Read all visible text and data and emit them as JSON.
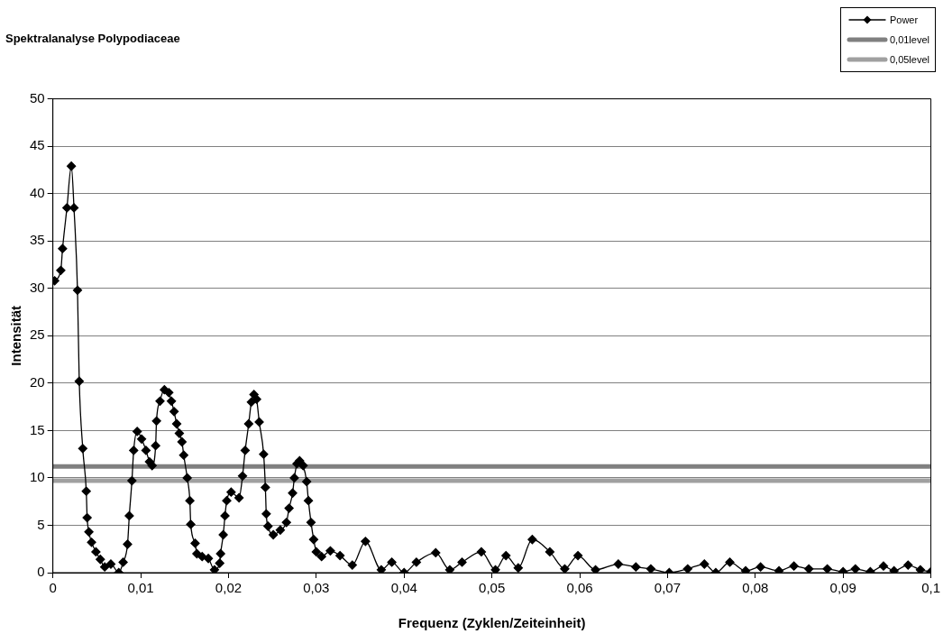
{
  "chart_data": {
    "type": "line",
    "title": "Spektralanalyse Polypodiaceae",
    "xlabel": "Frequenz (Zyklen/Zeiteinheit)",
    "ylabel": "Intensität",
    "xlim": [
      0,
      0.1
    ],
    "xticks": [
      {
        "value": 0,
        "label": "0"
      },
      {
        "value": 0.01,
        "label": "0,01"
      },
      {
        "value": 0.02,
        "label": "0,02"
      },
      {
        "value": 0.03,
        "label": "0,03"
      },
      {
        "value": 0.04,
        "label": "0,04"
      },
      {
        "value": 0.05,
        "label": "0,05"
      },
      {
        "value": 0.06,
        "label": "0,06"
      },
      {
        "value": 0.07,
        "label": "0,07"
      },
      {
        "value": 0.08,
        "label": "0,08"
      },
      {
        "value": 0.09,
        "label": "0,09"
      },
      {
        "value": 0.1,
        "label": "0,1"
      }
    ],
    "ylim": [
      0,
      50
    ],
    "yticks": [
      0,
      5,
      10,
      15,
      20,
      25,
      30,
      35,
      40,
      45,
      50
    ],
    "grid": "y",
    "legend": "top right",
    "series": [
      {
        "name": "Power",
        "color": "#000000",
        "marker": "diamond",
        "x": [
          0.0002,
          0.0009,
          0.0011,
          0.0016,
          0.0021,
          0.0024,
          0.0028,
          0.003,
          0.0034,
          0.0038,
          0.0039,
          0.0041,
          0.0044,
          0.0049,
          0.0054,
          0.0059,
          0.0066,
          0.0075,
          0.008,
          0.0085,
          0.0087,
          0.009,
          0.0092,
          0.0096,
          0.0101,
          0.0106,
          0.011,
          0.0113,
          0.0117,
          0.0118,
          0.0122,
          0.0127,
          0.0132,
          0.0135,
          0.0138,
          0.0141,
          0.0144,
          0.0147,
          0.0149,
          0.0153,
          0.0156,
          0.0157,
          0.0162,
          0.0164,
          0.017,
          0.0177,
          0.0184,
          0.019,
          0.0191,
          0.0194,
          0.0196,
          0.0198,
          0.0203,
          0.0212,
          0.0216,
          0.0219,
          0.0223,
          0.0226,
          0.0229,
          0.0232,
          0.0235,
          0.024,
          0.0242,
          0.0243,
          0.0245,
          0.0251,
          0.0259,
          0.0266,
          0.0269,
          0.0273,
          0.0275,
          0.0278,
          0.0281,
          0.0285,
          0.0289,
          0.0291,
          0.0294,
          0.0297,
          0.03,
          0.0306,
          0.0316,
          0.0327,
          0.0341,
          0.0356,
          0.0374,
          0.0386,
          0.04,
          0.0414,
          0.0436,
          0.0452,
          0.0466,
          0.0488,
          0.0504,
          0.0516,
          0.053,
          0.0546,
          0.0566,
          0.0583,
          0.0598,
          0.0618,
          0.0644,
          0.0664,
          0.0681,
          0.0702,
          0.0723,
          0.0742,
          0.0755,
          0.0771,
          0.0789,
          0.0806,
          0.0827,
          0.0844,
          0.0861,
          0.0882,
          0.09,
          0.0914,
          0.0931,
          0.0946,
          0.0958,
          0.0974,
          0.0988,
          0.1
        ],
        "values": [
          30.8,
          31.9,
          34.2,
          38.5,
          42.9,
          38.5,
          29.8,
          20.2,
          13.1,
          8.6,
          5.8,
          4.3,
          3.2,
          2.2,
          1.4,
          0.6,
          0.9,
          0,
          1.1,
          3,
          6,
          9.7,
          12.9,
          14.9,
          14.1,
          12.9,
          11.7,
          11.3,
          13.4,
          16,
          18.1,
          19.3,
          19,
          18.1,
          17,
          15.7,
          14.7,
          13.8,
          12.4,
          10,
          7.6,
          5.1,
          3.1,
          2,
          1.7,
          1.5,
          0.3,
          1,
          2,
          4,
          6,
          7.6,
          8.5,
          7.9,
          10.2,
          12.9,
          15.7,
          18,
          18.8,
          18.3,
          15.9,
          12.5,
          9,
          6.2,
          4.9,
          4,
          4.5,
          5.3,
          6.8,
          8.4,
          10,
          11.5,
          11.8,
          11.3,
          9.6,
          7.6,
          5.3,
          3.5,
          2.2,
          1.7,
          2.3,
          1.8,
          0.8,
          3.3,
          0.3,
          1.1,
          0,
          1.1,
          2.1,
          0.3,
          1.1,
          2.2,
          0.3,
          1.8,
          0.5,
          3.5,
          2.2,
          0.4,
          1.8,
          0.3,
          0.9,
          0.6,
          0.4,
          0,
          0.4,
          0.9,
          0,
          1.1,
          0.2,
          0.6,
          0.2,
          0.7,
          0.4,
          0.4,
          0.1,
          0.4,
          0.1,
          0.7,
          0.2,
          0.8,
          0.3,
          0.1
        ]
      },
      {
        "name": "0,01level",
        "color": "#808080",
        "marker": "none",
        "x": [
          0,
          0.1
        ],
        "values": [
          11.2,
          11.2
        ]
      },
      {
        "name": "0,05level",
        "color": "#a0a0a0",
        "marker": "none",
        "x": [
          0,
          0.1
        ],
        "values": [
          9.7,
          9.7
        ]
      }
    ]
  }
}
